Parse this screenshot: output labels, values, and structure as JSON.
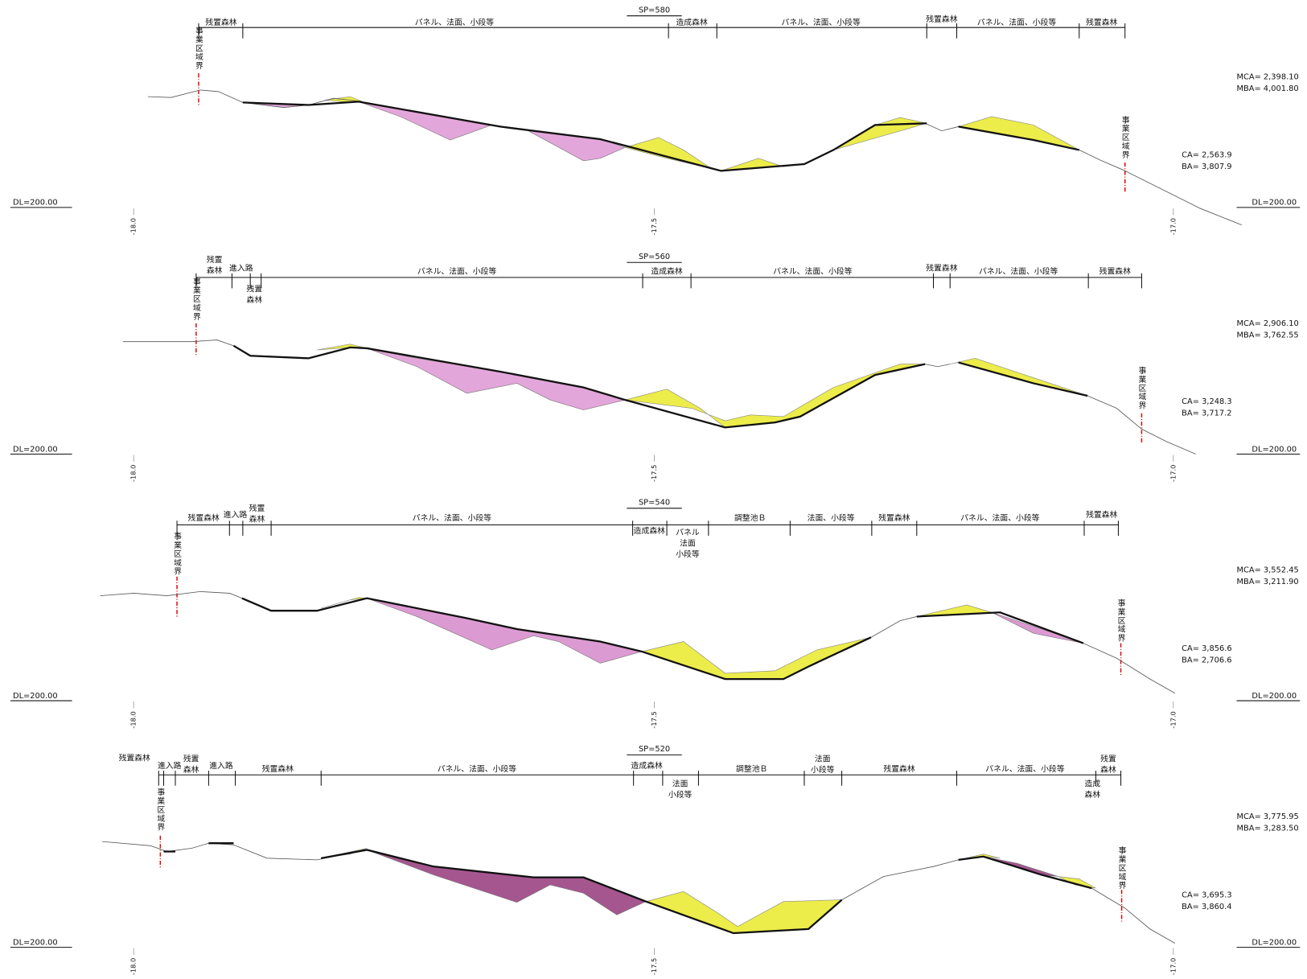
{
  "sections": [
    {
      "sp": "SP=580",
      "zones": [
        [
          "残置森林"
        ],
        [
          "パネル、法面、小段等"
        ],
        [
          "造成森林"
        ],
        [
          "パネル、法面、小段等"
        ],
        [
          "残置森林"
        ],
        [
          "パネル、法面、小段等"
        ],
        [
          "残置森林"
        ]
      ],
      "boundary_left": "事業区域界",
      "boundary_right": "事業区域界",
      "mca": "MCA= 2,398.10",
      "mba": "MBA= 4,001.80",
      "ca": "CA= 2,563.9",
      "ba": "BA= 3,807.9",
      "dl_left": "DL=200.00",
      "dl_right": "DL=200.00",
      "stations": [
        "-18.0",
        "-17.5",
        "-17.0"
      ]
    },
    {
      "sp": "SP=560",
      "zones": [
        [
          "残置",
          "森林"
        ],
        [
          "進入路"
        ],
        [
          "残置",
          "森林"
        ],
        [
          "パネル、法面、小段等"
        ],
        [
          "造成森林"
        ],
        [
          "パネル、法面、小段等"
        ],
        [
          "残置森林"
        ],
        [
          "パネル、法面、小段等"
        ],
        [
          "残置森林"
        ]
      ],
      "boundary_left": "事業区域界",
      "boundary_right": "事業区域界",
      "mca": "MCA= 2,906.10",
      "mba": "MBA= 3,762.55",
      "ca": "CA= 3,248.3",
      "ba": "BA= 3,717.2",
      "dl_left": "DL=200.00",
      "dl_right": "DL=200.00",
      "stations": [
        "-18.0",
        "-17.5",
        "-17.0"
      ]
    },
    {
      "sp": "SP=540",
      "zones": [
        [
          "残置森林"
        ],
        [
          "進入路"
        ],
        [
          "残置",
          "森林"
        ],
        [
          "パネル、法面、小段等"
        ],
        [
          "造成森林"
        ],
        [
          "パネル",
          "法面",
          "小段等"
        ],
        [
          "調整池Ｂ"
        ],
        [
          "法面、小段等"
        ],
        [
          "残置森林"
        ],
        [
          "パネル、法面、小段等"
        ],
        [
          "残置森林"
        ]
      ],
      "boundary_left": "事業区域界",
      "boundary_right": "事業区域界",
      "mca": "MCA= 3,552.45",
      "mba": "MBA= 3,211.90",
      "ca": "CA= 3,856.6",
      "ba": "BA= 2,706.6",
      "dl_left": "DL=200.00",
      "dl_right": "DL=200.00",
      "stations": [
        "-18.0",
        "-17.5",
        "-17.0"
      ]
    },
    {
      "sp": "SP=520",
      "zones": [
        [
          "残置森林"
        ],
        [
          "進入路"
        ],
        [
          "残置",
          "森林"
        ],
        [
          "進入路"
        ],
        [
          "残置森林"
        ],
        [
          "パネル、法面、小段等"
        ],
        [
          "造成森林"
        ],
        [
          "法面",
          "小段等"
        ],
        [
          "調整池Ｂ"
        ],
        [
          "法面",
          "小段等"
        ],
        [
          "残置森林"
        ],
        [
          "パネル、法面、小段等"
        ],
        [
          "残置",
          "森林"
        ],
        [
          "造成",
          "森林"
        ]
      ],
      "boundary_left": "事業区域界",
      "boundary_right": "事業区域界",
      "mca": "MCA= 3,775.95",
      "mba": "MBA= 3,283.50",
      "ca": "CA= 3,695.3",
      "ba": "BA= 3,860.4",
      "dl_left": "DL=200.00",
      "dl_right": "DL=200.00",
      "stations": [
        "-18.0",
        "-17.5",
        "-17.0"
      ]
    }
  ]
}
